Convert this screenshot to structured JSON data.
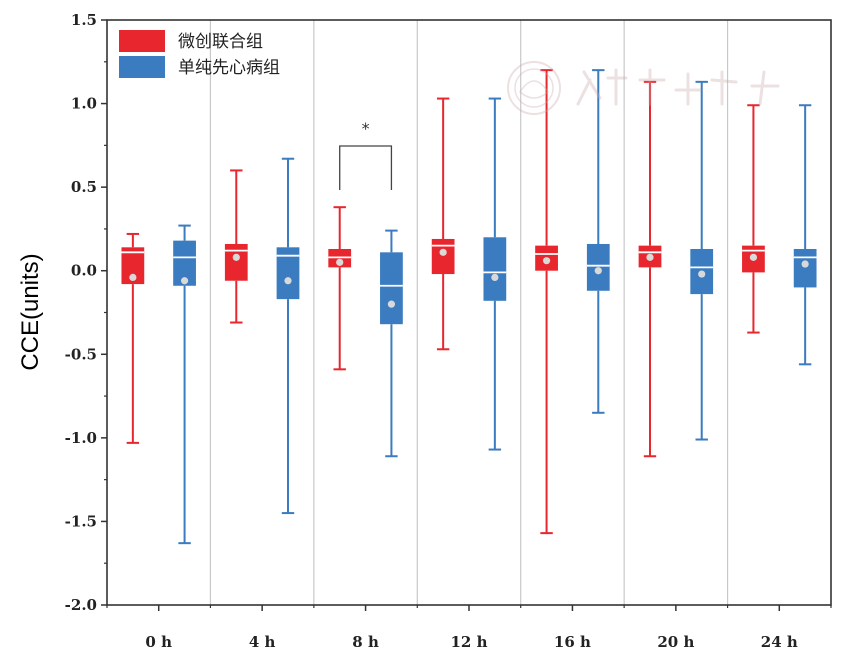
{
  "chart_data": {
    "type": "box",
    "ylabel": "CCE(units)",
    "xlabel": "",
    "ylim": [
      -2.0,
      1.5
    ],
    "y_ticks": [
      "-2.0",
      "-1.5",
      "-1.0",
      "-0.5",
      "0.0",
      "0.5",
      "1.0",
      "1.5"
    ],
    "categories": [
      "0 h",
      "4 h",
      "8 h",
      "12 h",
      "16 h",
      "20 h",
      "24 h"
    ],
    "grid": "vertical separators between categories",
    "legend": {
      "placement": "top-left"
    },
    "series": [
      {
        "name": "微创联合组",
        "color": "#e8262e",
        "boxes": [
          {
            "min": -1.03,
            "q1": -0.08,
            "median": 0.11,
            "q3": 0.14,
            "max": 0.22,
            "mean": -0.04
          },
          {
            "min": -0.31,
            "q1": -0.06,
            "median": 0.12,
            "q3": 0.16,
            "max": 0.6,
            "mean": 0.08
          },
          {
            "min": -0.59,
            "q1": 0.02,
            "median": 0.08,
            "q3": 0.13,
            "max": 0.38,
            "mean": 0.05
          },
          {
            "min": -0.47,
            "q1": -0.02,
            "median": 0.15,
            "q3": 0.19,
            "max": 1.03,
            "mean": 0.11
          },
          {
            "min": -1.57,
            "q1": 0.0,
            "median": 0.1,
            "q3": 0.15,
            "max": 1.2,
            "mean": 0.06
          },
          {
            "min": -1.11,
            "q1": 0.02,
            "median": 0.11,
            "q3": 0.15,
            "max": 1.13,
            "mean": 0.08
          },
          {
            "min": -0.37,
            "q1": -0.01,
            "median": 0.12,
            "q3": 0.15,
            "max": 0.99,
            "mean": 0.08
          }
        ]
      },
      {
        "name": "单纯先心病组",
        "color": "#3b7bbf",
        "boxes": [
          {
            "min": -1.63,
            "q1": -0.09,
            "median": 0.08,
            "q3": 0.18,
            "max": 0.27,
            "mean": -0.06
          },
          {
            "min": -1.45,
            "q1": -0.17,
            "median": 0.09,
            "q3": 0.14,
            "max": 0.67,
            "mean": -0.06
          },
          {
            "min": -1.11,
            "q1": -0.32,
            "median": -0.09,
            "q3": 0.11,
            "max": 0.24,
            "mean": -0.2
          },
          {
            "min": -1.07,
            "q1": -0.18,
            "median": -0.01,
            "q3": 0.2,
            "max": 1.03,
            "mean": -0.04
          },
          {
            "min": -0.85,
            "q1": -0.12,
            "median": 0.03,
            "q3": 0.16,
            "max": 1.2,
            "mean": 0.0
          },
          {
            "min": -1.01,
            "q1": -0.14,
            "median": 0.02,
            "q3": 0.13,
            "max": 1.13,
            "mean": -0.02
          },
          {
            "min": -0.56,
            "q1": -0.1,
            "median": 0.08,
            "q3": 0.13,
            "max": 0.99,
            "mean": 0.04
          }
        ]
      }
    ],
    "annotations": [
      {
        "text": "*",
        "category": "8 h",
        "type": "significance-bracket"
      }
    ]
  }
}
